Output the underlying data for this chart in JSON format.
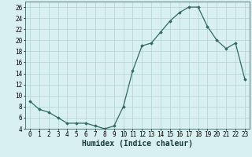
{
  "x": [
    0,
    1,
    2,
    3,
    4,
    5,
    6,
    7,
    8,
    9,
    10,
    11,
    12,
    13,
    14,
    15,
    16,
    17,
    18,
    19,
    20,
    21,
    22,
    23
  ],
  "y": [
    9,
    7.5,
    7,
    6,
    5,
    5,
    5,
    4.5,
    4,
    4.5,
    8,
    14.5,
    19,
    19.5,
    21.5,
    23.5,
    25,
    26,
    26,
    22.5,
    20,
    18.5,
    19.5,
    13
  ],
  "xlabel": "Humidex (Indice chaleur)",
  "xlim": [
    -0.5,
    23.5
  ],
  "ylim": [
    4,
    27
  ],
  "yticks": [
    4,
    6,
    8,
    10,
    12,
    14,
    16,
    18,
    20,
    22,
    24,
    26
  ],
  "xticks": [
    0,
    1,
    2,
    3,
    4,
    5,
    6,
    7,
    8,
    9,
    10,
    11,
    12,
    13,
    14,
    15,
    16,
    17,
    18,
    19,
    20,
    21,
    22,
    23
  ],
  "line_color": "#2e6b5e",
  "marker": "D",
  "marker_size": 1.8,
  "bg_color": "#d8f0f0",
  "grid_color": "#b8d8d8",
  "label_fontsize": 7,
  "tick_fontsize": 5.5
}
